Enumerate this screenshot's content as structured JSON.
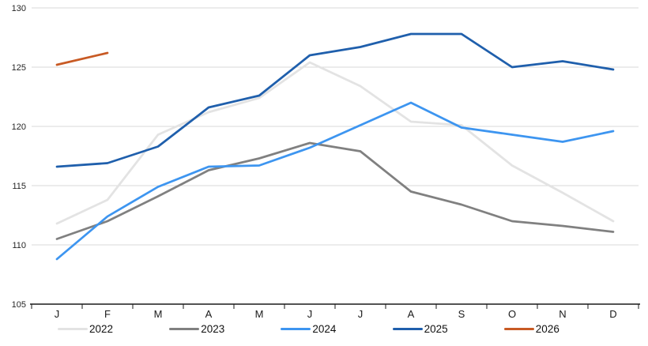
{
  "chart_data": {
    "type": "line",
    "title": "",
    "xlabel": "",
    "ylabel": "",
    "x_categories": [
      "J",
      "F",
      "M",
      "A",
      "M",
      "J",
      "J",
      "A",
      "S",
      "O",
      "N",
      "D"
    ],
    "y_ticks": [
      105,
      110,
      115,
      120,
      125,
      130
    ],
    "ylim": [
      105,
      130
    ],
    "grid": "horizontal-gridlines",
    "legend_position": "bottom",
    "series": [
      {
        "name": "2022",
        "color": "#e3e3e3",
        "values": [
          111.8,
          113.8,
          119.3,
          121.2,
          122.4,
          125.4,
          123.4,
          120.4,
          120.1,
          116.7,
          114.4,
          112.0
        ]
      },
      {
        "name": "2023",
        "color": "#808080",
        "values": [
          110.5,
          112.0,
          114.1,
          116.3,
          117.3,
          118.6,
          117.9,
          114.5,
          113.4,
          112.0,
          111.6,
          111.1
        ]
      },
      {
        "name": "2024",
        "color": "#3d95f0",
        "values": [
          108.8,
          112.4,
          114.9,
          116.6,
          116.7,
          118.2,
          120.1,
          122.0,
          119.9,
          119.3,
          118.7,
          119.6
        ]
      },
      {
        "name": "2025",
        "color": "#1f5fac",
        "values": [
          116.6,
          116.9,
          118.3,
          121.6,
          122.6,
          126.0,
          126.7,
          127.8,
          127.8,
          125.0,
          125.5,
          124.8
        ]
      },
      {
        "name": "2026",
        "color": "#c85a24",
        "values": [
          125.2,
          126.2,
          null,
          null,
          null,
          null,
          null,
          null,
          null,
          null,
          null,
          null
        ]
      }
    ]
  },
  "colors": {
    "background": "#ffffff",
    "gridline": "#d9d9d9",
    "axis": "#1a1a1a",
    "tick_text": "#262626"
  }
}
